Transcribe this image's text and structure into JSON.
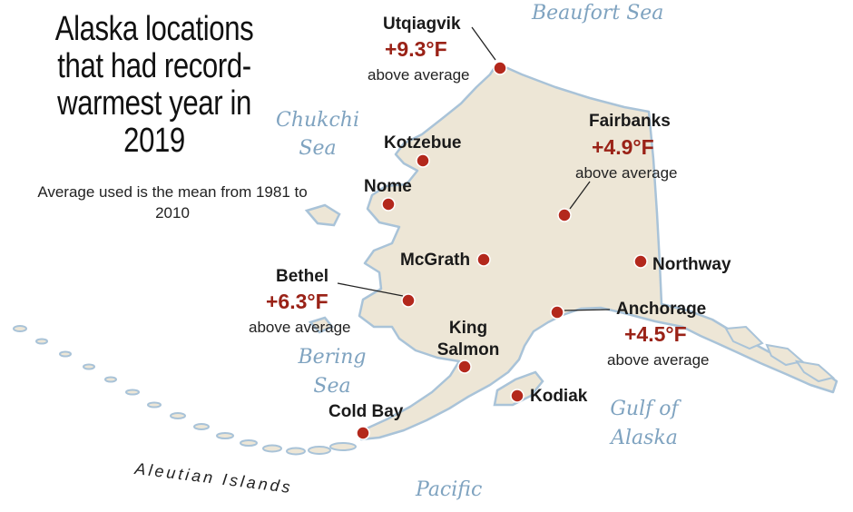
{
  "title": "Alaska locations that had record-warmest year in 2019",
  "note": "Average used is the mean from 1981 to 2010",
  "water_labels": {
    "beaufort": "Beaufort Sea",
    "chukchi": "Chukchi Sea",
    "bering": "Bering Sea",
    "gulf": "Gulf of Alaska",
    "pacific": "Pacific"
  },
  "islands_label": "Aleutian Islands",
  "value_suffix": "above average",
  "colors": {
    "land": "#ede6d6",
    "coast": "#a9c3d8",
    "marker": "#b3281c",
    "value": "#9a2217",
    "water_text": "#7fa3c0"
  },
  "locations": [
    {
      "name": "Utqiagvik",
      "anomaly": "+9.3°F"
    },
    {
      "name": "Fairbanks",
      "anomaly": "+4.9°F"
    },
    {
      "name": "Bethel",
      "anomaly": "+6.3°F"
    },
    {
      "name": "Anchorage",
      "anomaly": "+4.5°F"
    },
    {
      "name": "Kotzebue"
    },
    {
      "name": "Nome"
    },
    {
      "name": "McGrath"
    },
    {
      "name": "Northway"
    },
    {
      "name": "King Salmon"
    },
    {
      "name": "Kodiak"
    },
    {
      "name": "Cold Bay"
    }
  ]
}
